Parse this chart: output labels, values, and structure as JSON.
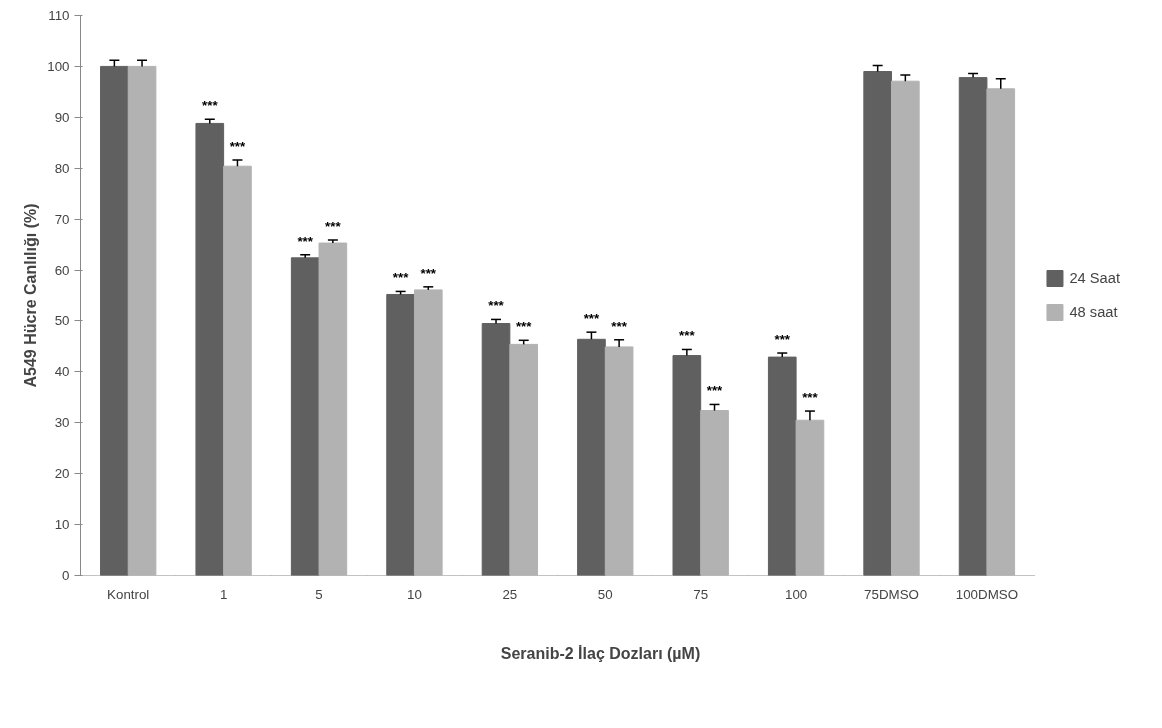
{
  "chart_data": {
    "type": "bar",
    "xlabel": "Seranib-2 İlaç Dozları (µM)",
    "ylabel": "A549 Hücre Canlılığı (%)",
    "categories": [
      "Kontrol",
      "1",
      "5",
      "10",
      "25",
      "50",
      "75",
      "100",
      "75DMSO",
      "100DMSO"
    ],
    "series": [
      {
        "name": "24 Saat",
        "color": "#606060",
        "values": [
          100,
          88.8,
          62.4,
          55.2,
          49.5,
          46.4,
          43.2,
          42.9,
          99,
          97.8
        ],
        "errors": [
          [
            100,
            101.2
          ],
          [
            88.8,
            89.6
          ],
          [
            62.4,
            63.0
          ],
          [
            55.2,
            55.8
          ],
          [
            49.5,
            50.3
          ],
          [
            46.4,
            47.8
          ],
          [
            43.2,
            44.4
          ],
          [
            42.9,
            43.7
          ],
          [
            99,
            100.2
          ],
          [
            97.8,
            98.6
          ]
        ],
        "value_labels": [
          null,
          "***",
          "***",
          "***",
          "***",
          "***",
          "***",
          "***",
          null,
          null
        ]
      },
      {
        "name": "48 saat",
        "color": "#b2b2b2",
        "values": [
          100,
          80.4,
          65.3,
          56.1,
          45.4,
          44.9,
          32.4,
          30.5,
          97.1,
          95.6
        ],
        "errors": [
          [
            100,
            101.2
          ],
          [
            80.4,
            81.6
          ],
          [
            65.3,
            65.9
          ],
          [
            56.1,
            56.7
          ],
          [
            45.4,
            46.2
          ],
          [
            44.9,
            46.3
          ],
          [
            32.4,
            33.6
          ],
          [
            30.5,
            32.3
          ],
          [
            97.1,
            98.3
          ],
          [
            95.6,
            97.6
          ]
        ],
        "value_labels": [
          null,
          "***",
          "***",
          "***",
          "***",
          "***",
          "***",
          "***",
          null,
          null
        ]
      }
    ],
    "ylim": [
      0,
      110
    ],
    "yticks": [
      0,
      10,
      20,
      30,
      40,
      50,
      60,
      70,
      80,
      90,
      100,
      110
    ],
    "grid": false,
    "legend": "right"
  }
}
